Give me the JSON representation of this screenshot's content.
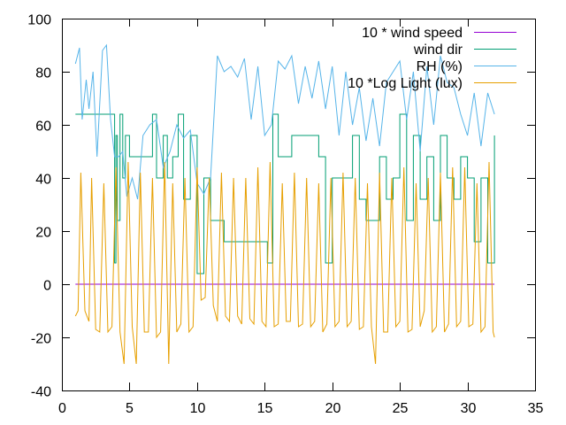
{
  "chart_data": {
    "type": "line",
    "title": "",
    "xlabel": "",
    "ylabel": "",
    "xlim": [
      0,
      35
    ],
    "ylim": [
      -40,
      100
    ],
    "xticks": [
      0,
      5,
      10,
      15,
      20,
      25,
      30,
      35
    ],
    "yticks": [
      -40,
      -20,
      0,
      20,
      40,
      60,
      80,
      100
    ],
    "grid": false,
    "legend_position": "top-right",
    "series": [
      {
        "name": "10 * wind speed",
        "color": "#9400d3",
        "style": "line",
        "x": [
          1.0,
          32.0
        ],
        "y": [
          0,
          0
        ]
      },
      {
        "name": "wind dir",
        "color": "#009e73",
        "style": "steps",
        "x": [
          1.0,
          3.9,
          4.0,
          4.1,
          4.3,
          4.5,
          4.7,
          5.0,
          6.5,
          6.7,
          7.0,
          7.5,
          7.8,
          8.2,
          8.6,
          9.0,
          9.5,
          10.0,
          10.5,
          11.0,
          12.0,
          15.0,
          15.2,
          15.6,
          16.0,
          17.0,
          18.0,
          19.0,
          19.5,
          20.0,
          21.0,
          21.5,
          22.0,
          22.5,
          23.0,
          23.5,
          24.0,
          24.5,
          25.0,
          25.5,
          26.0,
          26.5,
          27.0,
          27.5,
          28.0,
          28.5,
          29.0,
          29.5,
          30.0,
          30.5,
          31.0,
          31.5,
          32.0
        ],
        "y": [
          64,
          8,
          56,
          24,
          64,
          40,
          56,
          48,
          48,
          64,
          40,
          56,
          40,
          48,
          64,
          32,
          56,
          4,
          40,
          24,
          16,
          16,
          8,
          64,
          48,
          56,
          56,
          48,
          8,
          40,
          40,
          56,
          32,
          24,
          24,
          48,
          32,
          40,
          64,
          24,
          56,
          32,
          48,
          24,
          56,
          40,
          32,
          48,
          40,
          16,
          40,
          8,
          56
        ]
      },
      {
        "name": "RH (%)",
        "color": "#56b4e9",
        "style": "line",
        "x": [
          1.0,
          1.3,
          1.5,
          1.8,
          2.0,
          2.3,
          2.6,
          3.0,
          3.3,
          3.6,
          3.9,
          4.2,
          4.5,
          4.8,
          5.2,
          5.6,
          6.0,
          6.5,
          7.0,
          7.5,
          8.0,
          8.5,
          9.0,
          9.5,
          10.0,
          10.5,
          11.0,
          11.5,
          12.0,
          12.5,
          13.0,
          13.5,
          14.0,
          14.5,
          15.0,
          15.5,
          16.0,
          16.5,
          17.0,
          17.5,
          18.0,
          18.5,
          19.0,
          19.5,
          20.0,
          20.5,
          21.0,
          21.5,
          22.0,
          22.5,
          23.0,
          23.5,
          24.0,
          24.5,
          25.0,
          25.5,
          26.0,
          26.5,
          27.0,
          27.5,
          28.0,
          28.5,
          29.0,
          29.5,
          30.0,
          30.5,
          31.0,
          31.5,
          32.0
        ],
        "y": [
          83,
          89,
          62,
          77,
          66,
          80,
          48,
          88,
          90,
          62,
          48,
          48,
          50,
          33,
          40,
          32,
          56,
          60,
          62,
          44,
          50,
          60,
          55,
          58,
          38,
          34,
          40,
          86,
          80,
          82,
          78,
          85,
          62,
          82,
          56,
          60,
          84,
          81,
          86,
          68,
          82,
          70,
          84,
          66,
          82,
          56,
          80,
          60,
          74,
          54,
          70,
          52,
          76,
          80,
          84,
          62,
          80,
          50,
          82,
          60,
          86,
          76,
          74,
          64,
          56,
          72,
          52,
          72,
          64
        ]
      },
      {
        "name": "10 *Log Light (lux)",
        "color": "#e69f00",
        "style": "line",
        "x": [
          1.0,
          1.2,
          1.4,
          1.7,
          2.0,
          2.2,
          2.5,
          2.8,
          3.1,
          3.4,
          3.7,
          4.0,
          4.3,
          4.6,
          4.9,
          5.2,
          5.5,
          5.8,
          6.1,
          6.4,
          6.7,
          7.0,
          7.3,
          7.6,
          7.9,
          8.2,
          8.5,
          8.8,
          9.1,
          9.4,
          9.7,
          10.0,
          10.3,
          10.6,
          10.9,
          11.2,
          11.5,
          11.8,
          12.1,
          12.4,
          12.7,
          13.0,
          13.3,
          13.6,
          13.9,
          14.2,
          14.5,
          14.8,
          15.1,
          15.4,
          15.7,
          16.0,
          16.3,
          16.6,
          16.9,
          17.2,
          17.5,
          17.8,
          18.1,
          18.4,
          18.7,
          19.0,
          19.3,
          19.6,
          19.9,
          20.2,
          20.5,
          20.8,
          21.1,
          21.4,
          21.7,
          22.0,
          22.3,
          22.6,
          22.9,
          23.2,
          23.5,
          23.8,
          24.1,
          24.4,
          24.7,
          25.0,
          25.3,
          25.6,
          25.9,
          26.2,
          26.5,
          26.8,
          27.1,
          27.4,
          27.7,
          28.0,
          28.3,
          28.6,
          28.9,
          29.2,
          29.5,
          29.8,
          30.1,
          30.4,
          30.7,
          31.0,
          31.3,
          31.6,
          31.9,
          32.0
        ],
        "y": [
          -12,
          -10,
          42,
          -10,
          -14,
          40,
          -17,
          -18,
          38,
          -18,
          -16,
          44,
          -18,
          -30,
          46,
          -16,
          -30,
          42,
          -18,
          -18,
          40,
          -20,
          -18,
          46,
          -30,
          38,
          -18,
          -15,
          40,
          -18,
          -16,
          44,
          -6,
          -5,
          40,
          -8,
          -14,
          42,
          -12,
          -14,
          40,
          -12,
          -15,
          40,
          -13,
          -15,
          44,
          -14,
          -16,
          46,
          -16,
          -15,
          38,
          -14,
          -14,
          42,
          -16,
          -15,
          40,
          -16,
          -14,
          38,
          -18,
          -15,
          40,
          -16,
          -14,
          42,
          -16,
          -14,
          40,
          -17,
          -16,
          38,
          -16,
          -30,
          42,
          -18,
          -18,
          40,
          -16,
          -14,
          44,
          -18,
          -17,
          38,
          -16,
          -10,
          40,
          -18,
          -16,
          42,
          -18,
          -15,
          44,
          -16,
          -14,
          44,
          -16,
          -15,
          38,
          -18,
          -16,
          46,
          -18,
          -20
        ]
      }
    ]
  }
}
